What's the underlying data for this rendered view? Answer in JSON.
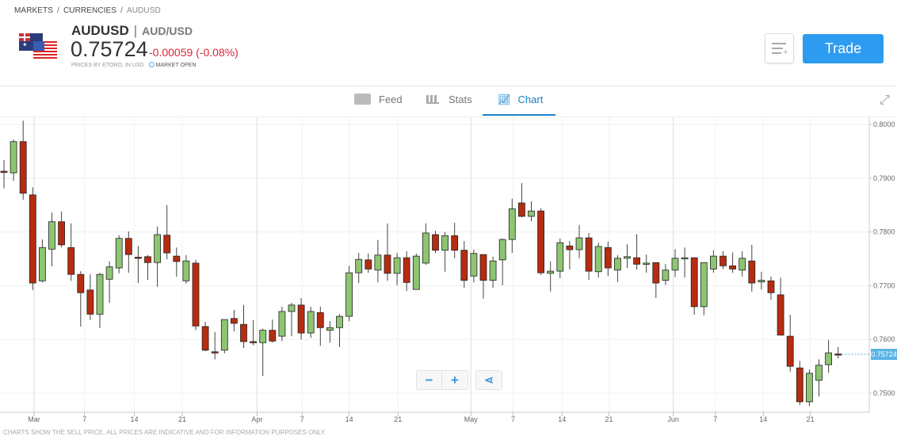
{
  "breadcrumb": [
    "MARKETS",
    "CURRENCIES",
    "AUDUSD"
  ],
  "instrument": {
    "symbol": "AUDUSD",
    "pair": "AUD/USD",
    "price": "0.75724",
    "change": "-0.00059 (-0.08%)",
    "prices_by": "PRICES BY ETORO, IN USD",
    "market_status": "MARKET OPEN"
  },
  "actions": {
    "trade_label": "Trade"
  },
  "tabs": [
    {
      "label": "Feed",
      "icon": "feed-icon"
    },
    {
      "label": "Stats",
      "icon": "stats-icon"
    },
    {
      "label": "Chart",
      "icon": "chart-icon",
      "active": true
    }
  ],
  "footer": "CHARTS SHOW THE SELL PRICE. ALL PRICES ARE INDICATIVE AND FOR INFORMATION PURPOSES ONLY.",
  "zoom": {
    "minus": "−",
    "plus": "+"
  },
  "colors": {
    "up": "#8dc572",
    "down": "#b72c10",
    "accent": "#2d9cf0",
    "change": "#d9263a"
  },
  "chart_data": {
    "type": "candlestick",
    "ylim": [
      0.7465,
      0.8015
    ],
    "y_ticks": [
      "0.8000",
      "0.7900",
      "0.7800",
      "0.7700",
      "0.7600",
      "0.7500"
    ],
    "x_ticks": [
      "Mar",
      "7",
      "14",
      "21",
      "Apr",
      "7",
      "14",
      "21",
      "May",
      "7",
      "14",
      "21",
      "Jun",
      "7",
      "14",
      "21"
    ],
    "last_price": "0.75724",
    "grid": true,
    "ohlc": [
      [
        0.7913,
        0.7934,
        0.7881,
        0.7912
      ],
      [
        0.791,
        0.7972,
        0.7895,
        0.7968
      ],
      [
        0.7968,
        0.8007,
        0.786,
        0.7872
      ],
      [
        0.7869,
        0.7883,
        0.7692,
        0.7705
      ],
      [
        0.7709,
        0.7786,
        0.7706,
        0.7771
      ],
      [
        0.7768,
        0.7836,
        0.7736,
        0.7819
      ],
      [
        0.7819,
        0.7838,
        0.7771,
        0.7776
      ],
      [
        0.7771,
        0.7816,
        0.7709,
        0.7721
      ],
      [
        0.7721,
        0.7727,
        0.7624,
        0.7687
      ],
      [
        0.7692,
        0.7721,
        0.7636,
        0.7647
      ],
      [
        0.7647,
        0.7724,
        0.7621,
        0.7721
      ],
      [
        0.7712,
        0.7745,
        0.7668,
        0.7735
      ],
      [
        0.7733,
        0.7794,
        0.7723,
        0.7788
      ],
      [
        0.7788,
        0.7801,
        0.7724,
        0.7758
      ],
      [
        0.7753,
        0.7774,
        0.7705,
        0.7752
      ],
      [
        0.7754,
        0.7757,
        0.7711,
        0.7743
      ],
      [
        0.7743,
        0.781,
        0.7698,
        0.7795
      ],
      [
        0.7794,
        0.785,
        0.7749,
        0.7761
      ],
      [
        0.7755,
        0.7771,
        0.7717,
        0.7745
      ],
      [
        0.7709,
        0.7757,
        0.7704,
        0.7746
      ],
      [
        0.7742,
        0.7748,
        0.7617,
        0.7625
      ],
      [
        0.7624,
        0.7633,
        0.7578,
        0.758
      ],
      [
        0.7577,
        0.7614,
        0.7563,
        0.7576
      ],
      [
        0.758,
        0.7637,
        0.7574,
        0.7637
      ],
      [
        0.7639,
        0.7655,
        0.7615,
        0.763
      ],
      [
        0.7628,
        0.7664,
        0.7584,
        0.7596
      ],
      [
        0.7596,
        0.7636,
        0.7589,
        0.7594
      ],
      [
        0.7594,
        0.762,
        0.7532,
        0.7617
      ],
      [
        0.7617,
        0.7637,
        0.7594,
        0.7597
      ],
      [
        0.7606,
        0.7661,
        0.7597,
        0.7652
      ],
      [
        0.7652,
        0.7668,
        0.7606,
        0.7664
      ],
      [
        0.7664,
        0.7677,
        0.76,
        0.7612
      ],
      [
        0.7612,
        0.7661,
        0.7603,
        0.7652
      ],
      [
        0.765,
        0.7661,
        0.7588,
        0.7622
      ],
      [
        0.7617,
        0.7634,
        0.7594,
        0.7622
      ],
      [
        0.7622,
        0.7647,
        0.7586,
        0.7643
      ],
      [
        0.7643,
        0.7737,
        0.7634,
        0.7724
      ],
      [
        0.7724,
        0.7761,
        0.7705,
        0.7749
      ],
      [
        0.7748,
        0.776,
        0.7724,
        0.7731
      ],
      [
        0.7729,
        0.7785,
        0.7706,
        0.7757
      ],
      [
        0.7757,
        0.7816,
        0.7709,
        0.7723
      ],
      [
        0.7723,
        0.7761,
        0.7701,
        0.7752
      ],
      [
        0.7752,
        0.7764,
        0.769,
        0.7706
      ],
      [
        0.7693,
        0.776,
        0.7693,
        0.7755
      ],
      [
        0.7742,
        0.7816,
        0.7739,
        0.7798
      ],
      [
        0.7795,
        0.7802,
        0.7761,
        0.7766
      ],
      [
        0.7766,
        0.78,
        0.7726,
        0.7793
      ],
      [
        0.7793,
        0.7817,
        0.7751,
        0.7766
      ],
      [
        0.7766,
        0.7783,
        0.7696,
        0.771
      ],
      [
        0.7718,
        0.7767,
        0.7706,
        0.776
      ],
      [
        0.7758,
        0.7758,
        0.7676,
        0.771
      ],
      [
        0.771,
        0.7754,
        0.7696,
        0.7746
      ],
      [
        0.7748,
        0.7788,
        0.7701,
        0.7786
      ],
      [
        0.7786,
        0.7862,
        0.7761,
        0.7843
      ],
      [
        0.7854,
        0.7891,
        0.7827,
        0.7829
      ],
      [
        0.7829,
        0.7857,
        0.782,
        0.7839
      ],
      [
        0.7839,
        0.7844,
        0.772,
        0.7724
      ],
      [
        0.7723,
        0.7745,
        0.7689,
        0.7727
      ],
      [
        0.7727,
        0.7788,
        0.7714,
        0.778
      ],
      [
        0.7774,
        0.7783,
        0.773,
        0.7767
      ],
      [
        0.7767,
        0.7813,
        0.7751,
        0.7789
      ],
      [
        0.7789,
        0.7798,
        0.7711,
        0.7727
      ],
      [
        0.7726,
        0.778,
        0.7715,
        0.7773
      ],
      [
        0.7771,
        0.7782,
        0.7718,
        0.7733
      ],
      [
        0.7729,
        0.7757,
        0.7707,
        0.7751
      ],
      [
        0.7751,
        0.7777,
        0.7733,
        0.7754
      ],
      [
        0.7752,
        0.7796,
        0.773,
        0.774
      ],
      [
        0.774,
        0.7758,
        0.7724,
        0.7742
      ],
      [
        0.7743,
        0.7743,
        0.7677,
        0.7705
      ],
      [
        0.771,
        0.774,
        0.7701,
        0.7729
      ],
      [
        0.7729,
        0.7768,
        0.7716,
        0.7751
      ],
      [
        0.775,
        0.7771,
        0.7715,
        0.7752
      ],
      [
        0.7752,
        0.7752,
        0.7646,
        0.7661
      ],
      [
        0.7661,
        0.7743,
        0.7645,
        0.7743
      ],
      [
        0.7731,
        0.7766,
        0.7724,
        0.7755
      ],
      [
        0.7755,
        0.7764,
        0.7731,
        0.7737
      ],
      [
        0.7737,
        0.7762,
        0.7724,
        0.7731
      ],
      [
        0.7729,
        0.7764,
        0.7717,
        0.7751
      ],
      [
        0.7746,
        0.7776,
        0.7689,
        0.7705
      ],
      [
        0.7707,
        0.7726,
        0.7693,
        0.771
      ],
      [
        0.7709,
        0.7717,
        0.7674,
        0.7687
      ],
      [
        0.7683,
        0.7715,
        0.7608,
        0.7608
      ],
      [
        0.7606,
        0.7646,
        0.754,
        0.755
      ],
      [
        0.7547,
        0.756,
        0.7478,
        0.7484
      ],
      [
        0.7484,
        0.7544,
        0.7476,
        0.7537
      ],
      [
        0.7524,
        0.7563,
        0.7494,
        0.7552
      ],
      [
        0.7553,
        0.7599,
        0.7538,
        0.7575
      ],
      [
        0.7573,
        0.7586,
        0.7565,
        0.7572
      ]
    ]
  }
}
